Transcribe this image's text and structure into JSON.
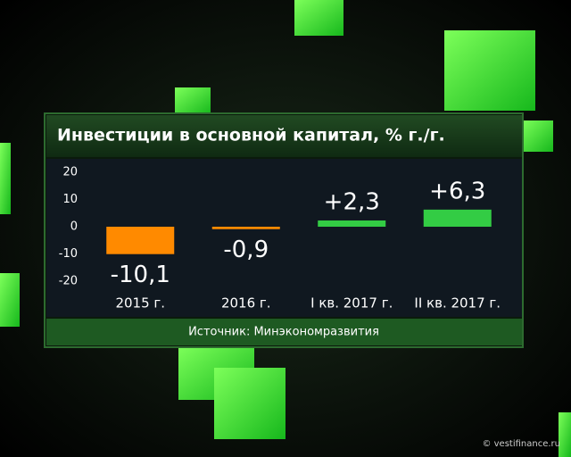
{
  "chart_data": {
    "type": "bar",
    "title": "Инвестиции в основной капитал, % г./г.",
    "categories": [
      "2015 г.",
      "2016 г.",
      "I кв. 2017 г.",
      "II кв. 2017 г."
    ],
    "values": [
      -10.1,
      -0.9,
      2.3,
      6.3
    ],
    "value_labels": [
      "-10,1",
      "-0,9",
      "+2,3",
      "+6,3"
    ],
    "colors": [
      "#ff8a00",
      "#ff8a00",
      "#33cc44",
      "#33cc44"
    ],
    "ylim": [
      -25,
      25
    ],
    "yticks": [
      20,
      10,
      0,
      -10,
      -20
    ],
    "source": "Источник: Минэкономразвития",
    "watermark": "© vestifinance.ru"
  }
}
